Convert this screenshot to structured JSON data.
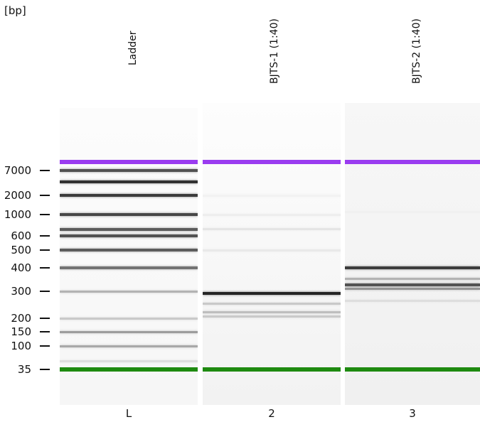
{
  "unit_label": "[bp]",
  "lanes": [
    {
      "name": "Ladder",
      "number": "L",
      "bands": [
        {
          "bp": 10380,
          "color": "#9a3cf0",
          "intensity": 1.0,
          "kind": "upper-marker"
        },
        {
          "bp": 7000,
          "intensity": 0.8
        },
        {
          "bp": 4000,
          "intensity": 0.95
        },
        {
          "bp": 2000,
          "intensity": 0.9
        },
        {
          "bp": 1000,
          "intensity": 0.85
        },
        {
          "bp": 700,
          "intensity": 0.75
        },
        {
          "bp": 600,
          "intensity": 0.8
        },
        {
          "bp": 500,
          "intensity": 0.75
        },
        {
          "bp": 400,
          "intensity": 0.65
        },
        {
          "bp": 300,
          "intensity": 0.35
        },
        {
          "bp": 200,
          "intensity": 0.25
        },
        {
          "bp": 150,
          "intensity": 0.45
        },
        {
          "bp": 100,
          "intensity": 0.4
        },
        {
          "bp": 50,
          "intensity": 0.15
        },
        {
          "bp": 35,
          "color": "#1e8a10",
          "intensity": 1.0,
          "kind": "lower-marker"
        }
      ]
    },
    {
      "name": "BJTS-1 (1:40)",
      "number": "2",
      "bands": [
        {
          "bp": 10380,
          "color": "#9a3cf0",
          "intensity": 1.0,
          "kind": "upper-marker"
        },
        {
          "bp": 2000,
          "intensity": 0.06
        },
        {
          "bp": 1000,
          "intensity": 0.08
        },
        {
          "bp": 700,
          "intensity": 0.12
        },
        {
          "bp": 500,
          "intensity": 0.1
        },
        {
          "bp": 290,
          "intensity": 1.0
        },
        {
          "bp": 250,
          "intensity": 0.25
        },
        {
          "bp": 220,
          "intensity": 0.3
        },
        {
          "bp": 205,
          "intensity": 0.25
        },
        {
          "bp": 35,
          "color": "#1e8a10",
          "intensity": 1.0,
          "kind": "lower-marker"
        }
      ]
    },
    {
      "name": "BJTS-2 (1:40)",
      "number": "3",
      "bands": [
        {
          "bp": 10380,
          "color": "#9a3cf0",
          "intensity": 1.0,
          "kind": "upper-marker"
        },
        {
          "bp": 1100,
          "intensity": 0.07
        },
        {
          "bp": 400,
          "intensity": 0.9
        },
        {
          "bp": 350,
          "intensity": 0.35
        },
        {
          "bp": 325,
          "intensity": 0.8
        },
        {
          "bp": 310,
          "intensity": 0.5
        },
        {
          "bp": 260,
          "intensity": 0.15
        },
        {
          "bp": 35,
          "color": "#1e8a10",
          "intensity": 1.0,
          "kind": "lower-marker"
        }
      ]
    }
  ],
  "size_labels": [
    {
      "text": "7000",
      "bp": 7000
    },
    {
      "text": "2000",
      "bp": 2000
    },
    {
      "text": "1000",
      "bp": 1000
    },
    {
      "text": "600",
      "bp": 600
    },
    {
      "text": "500",
      "bp": 500
    },
    {
      "text": "400",
      "bp": 400
    },
    {
      "text": "300",
      "bp": 300
    },
    {
      "text": "200",
      "bp": 200
    },
    {
      "text": "150",
      "bp": 150
    },
    {
      "text": "100",
      "bp": 100
    },
    {
      "text": "35",
      "bp": 35
    }
  ]
}
